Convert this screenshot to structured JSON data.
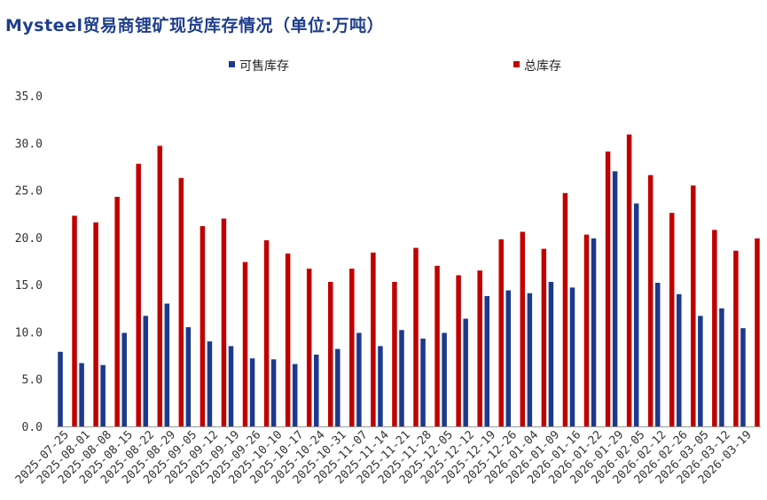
{
  "chart_data": {
    "type": "bar",
    "title": "Mysteel贸易商锂矿现货库存情况（单位:万吨）",
    "categories": [
      "2025-07-25",
      "2025-08-01",
      "2025-08-08",
      "2025-08-15",
      "2025-08-22",
      "2025-08-29",
      "2025-09-05",
      "2025-09-12",
      "2025-09-19",
      "2025-09-26",
      "2025-10-10",
      "2025-10-17",
      "2025-10-24",
      "2025-10-31",
      "2025-11-07",
      "2025-11-14",
      "2025-11-21",
      "2025-11-28",
      "2025-12-05",
      "2025-12-12",
      "2025-12-19",
      "2025-12-26",
      "2026-01-04",
      "2026-01-09",
      "2026-01-16",
      "2026-01-22",
      "2026-01-29",
      "2026-02-05",
      "2026-02-12",
      "2026-02-26",
      "2026-03-05",
      "2026-03-12",
      "2026-03-19"
    ],
    "series": [
      {
        "name": "可售库存",
        "color": "#1b3a8c",
        "values": [
          7.9,
          6.7,
          6.5,
          9.9,
          11.7,
          13.0,
          10.5,
          9.0,
          8.5,
          7.2,
          7.1,
          6.6,
          7.6,
          8.2,
          9.9,
          8.5,
          10.2,
          9.3,
          9.9,
          11.4,
          13.8,
          14.4,
          14.1,
          15.3,
          14.7,
          19.9,
          27.0,
          23.6,
          15.2,
          14.0,
          11.7,
          12.5,
          10.4
        ]
      },
      {
        "name": "总库存",
        "color": "#c00000",
        "values": [
          22.3,
          21.6,
          24.3,
          27.8,
          29.7,
          26.3,
          21.2,
          22.0,
          17.4,
          19.7,
          18.3,
          16.7,
          15.3,
          16.7,
          18.4,
          15.3,
          18.9,
          17.0,
          16.0,
          16.5,
          19.8,
          20.6,
          18.8,
          24.7,
          20.3,
          29.1,
          30.9,
          26.6,
          22.6,
          25.5,
          20.8,
          18.6,
          19.9
        ]
      }
    ],
    "yticks": [
      "0.0",
      "5.0",
      "10.0",
      "15.0",
      "20.0",
      "25.0",
      "30.0",
      "35.0"
    ],
    "ylim": [
      0,
      35
    ],
    "grid": false,
    "legend_position": "top-center",
    "xlabel": "",
    "ylabel": ""
  }
}
